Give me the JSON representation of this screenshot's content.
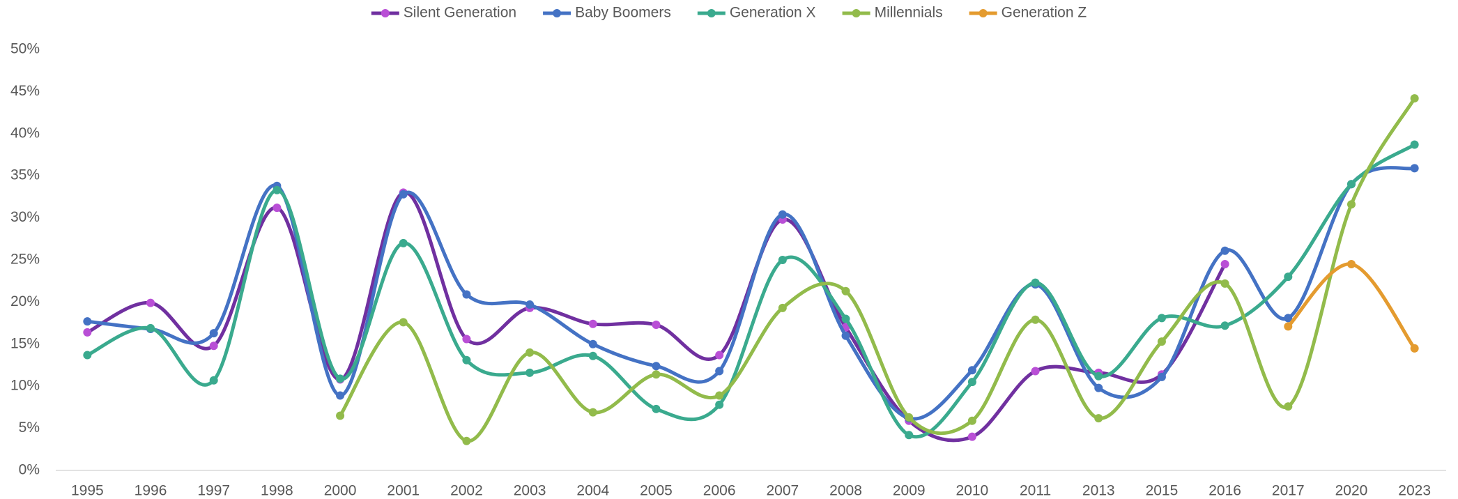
{
  "chart_data": {
    "type": "line",
    "categories": [
      "1995",
      "1996",
      "1997",
      "1998",
      "2000",
      "2001",
      "2002",
      "2003",
      "2004",
      "2005",
      "2006",
      "2007",
      "2008",
      "2009",
      "2010",
      "2011",
      "2013",
      "2015",
      "2016",
      "2017",
      "2020",
      "2023"
    ],
    "series": [
      {
        "name": "Silent Generation",
        "color": "#7030a0",
        "marker_color": "#b94fd6",
        "values": [
          16.4,
          19.9,
          14.8,
          31.2,
          10.8,
          33.0,
          15.6,
          19.3,
          17.4,
          17.3,
          13.7,
          29.8,
          17.0,
          5.9,
          4.0,
          11.8,
          11.6,
          11.4,
          24.5,
          null,
          null,
          null
        ]
      },
      {
        "name": "Baby Boomers",
        "color": "#4472c4",
        "marker_color": "#4472c4",
        "values": [
          17.7,
          16.8,
          16.3,
          33.8,
          8.9,
          32.8,
          20.9,
          19.7,
          15.0,
          12.4,
          11.8,
          30.4,
          16.0,
          6.2,
          11.9,
          22.1,
          9.8,
          11.1,
          26.1,
          18.1,
          34.0,
          35.9
        ]
      },
      {
        "name": "Generation X",
        "color": "#3aaa8e",
        "marker_color": "#3aaa8e",
        "values": [
          13.7,
          16.9,
          10.7,
          33.3,
          10.9,
          27.0,
          13.1,
          11.6,
          13.6,
          7.3,
          7.8,
          25.0,
          18.0,
          4.2,
          10.5,
          22.3,
          11.2,
          18.1,
          17.2,
          23.0,
          34.0,
          38.7
        ]
      },
      {
        "name": "Millennials",
        "color": "#92bb4b",
        "marker_color": "#92bb4b",
        "values": [
          null,
          null,
          null,
          null,
          6.5,
          17.6,
          3.5,
          14.0,
          6.9,
          11.4,
          8.9,
          19.3,
          21.3,
          6.3,
          5.9,
          17.9,
          6.2,
          15.3,
          22.2,
          7.6,
          31.6,
          44.2
        ]
      },
      {
        "name": "Generation Z",
        "color": "#e49b2f",
        "marker_color": "#e49b2f",
        "values": [
          null,
          null,
          null,
          null,
          null,
          null,
          null,
          null,
          null,
          null,
          null,
          null,
          null,
          null,
          null,
          null,
          null,
          null,
          null,
          17.1,
          24.5,
          14.5
        ]
      }
    ],
    "ylim": [
      0,
      50
    ],
    "yticks": [
      {
        "value": 0,
        "label": "0%"
      },
      {
        "value": 5,
        "label": "5%"
      },
      {
        "value": 10,
        "label": "10%"
      },
      {
        "value": 15,
        "label": "15%"
      },
      {
        "value": 20,
        "label": "20%"
      },
      {
        "value": 25,
        "label": "25%"
      },
      {
        "value": 30,
        "label": "30%"
      },
      {
        "value": 35,
        "label": "35%"
      },
      {
        "value": 40,
        "label": "40%"
      },
      {
        "value": 45,
        "label": "45%"
      },
      {
        "value": 50,
        "label": "50%"
      }
    ],
    "grid": false,
    "legend": "top",
    "smooth": true
  }
}
